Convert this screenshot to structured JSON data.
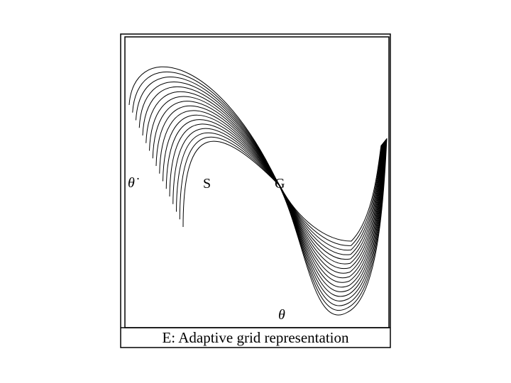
{
  "figure": {
    "y_label": "θ̇",
    "x_label": "θ",
    "start_label": "S",
    "goal_label": "G",
    "caption": "E: Adaptive grid representation"
  }
}
